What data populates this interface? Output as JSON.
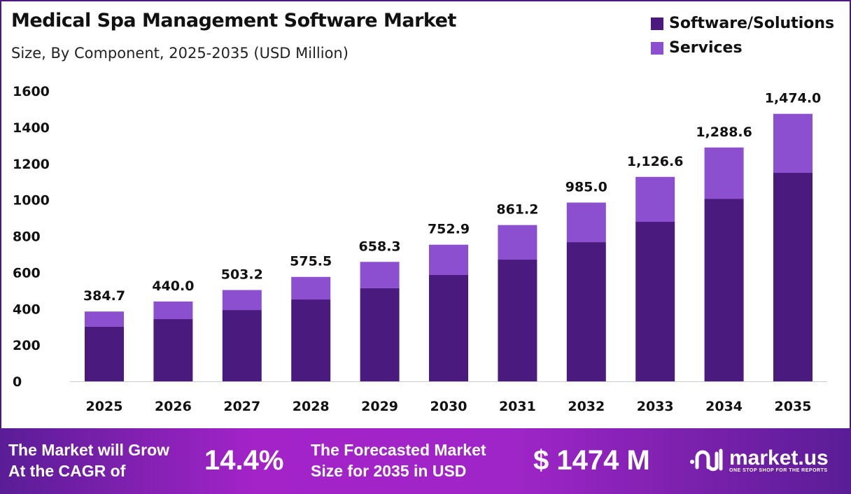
{
  "chart_data": {
    "type": "bar",
    "stacked": true,
    "title": "Medical Spa Management  Software Market",
    "subtitle": "Size, By Component, 2025-2035 (USD Million)",
    "xlabel": "",
    "ylabel": "",
    "ylim": [
      0,
      1600
    ],
    "yticks": [
      0,
      200,
      400,
      600,
      800,
      1000,
      1200,
      1400,
      1600
    ],
    "categories": [
      "2025",
      "2026",
      "2027",
      "2028",
      "2029",
      "2030",
      "2031",
      "2032",
      "2033",
      "2034",
      "2035"
    ],
    "series": [
      {
        "name": "Software/Solutions",
        "color": "#4b1a7e",
        "values": [
          301,
          343,
          393,
          451,
          513,
          586,
          671,
          767,
          879,
          1006,
          1149
        ]
      },
      {
        "name": "Services",
        "color": "#8b4fd0",
        "values": [
          83.7,
          97.0,
          110.2,
          124.5,
          145.3,
          166.9,
          190.2,
          218.0,
          247.6,
          282.6,
          325.0
        ]
      }
    ],
    "totals": [
      384.7,
      440.0,
      503.2,
      575.5,
      658.3,
      752.9,
      861.2,
      985.0,
      1126.6,
      1288.6,
      1474.0
    ],
    "total_labels": [
      "384.7",
      "440.0",
      "503.2",
      "575.5",
      "658.3",
      "752.9",
      "861.2",
      "985.0",
      "1,126.6",
      "1,288.6",
      "1,474.0"
    ],
    "legend_position": "top-right",
    "grid": false
  },
  "footer": {
    "cagr_text_1": "The Market will Grow",
    "cagr_text_2": "At the CAGR of",
    "cagr_value": "14.4%",
    "forecast_text_1": "The Forecasted Market",
    "forecast_text_2": "Size for 2035 in USD",
    "forecast_value": "$ 1474 M",
    "logo_name": "market.us",
    "logo_tagline": "ONE STOP SHOP FOR THE REPORTS"
  }
}
